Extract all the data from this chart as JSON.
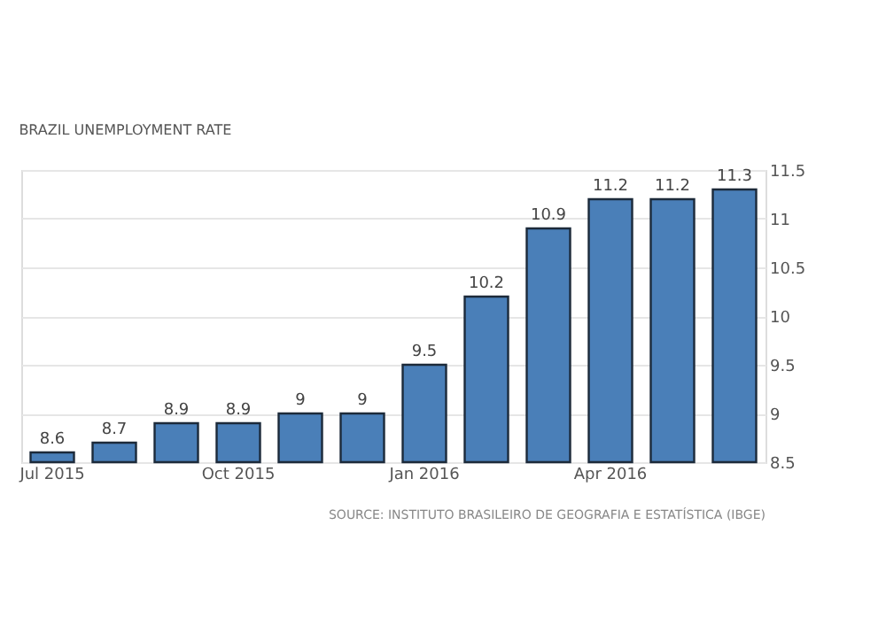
{
  "chart_data": {
    "type": "bar",
    "title": "BRAZIL UNEMPLOYMENT RATE",
    "categories": [
      "Jul 2015",
      null,
      null,
      "Oct 2015",
      null,
      null,
      "Jan 2016",
      null,
      null,
      "Apr 2016",
      null,
      null
    ],
    "values": [
      8.6,
      8.7,
      8.9,
      8.9,
      9,
      9,
      9.5,
      10.2,
      10.9,
      11.2,
      11.2,
      11.3
    ],
    "color": "#4a7fb8",
    "ylim": [
      8.5,
      11.5
    ],
    "yticks": [
      8.5,
      9,
      9.5,
      10,
      10.5,
      11,
      11.5
    ],
    "grid": "y",
    "data_labels": true,
    "annotations": [
      "SOURCE: INSTITUTO BRASILEIRO DE GEOGRAFIA E ESTATÍSTICA (IBGE)"
    ]
  }
}
